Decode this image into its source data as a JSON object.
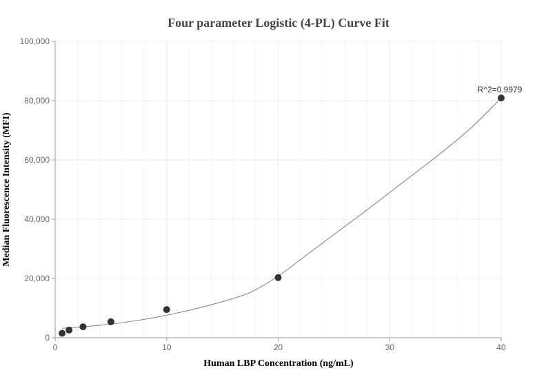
{
  "chart_data": {
    "type": "scatter",
    "title": "Four parameter Logistic (4-PL) Curve Fit",
    "xlabel": "Human LBP Concentration (ng/mL)",
    "ylabel": "Median Fluorescence Intensity (MFI)",
    "xlim": [
      0,
      40
    ],
    "ylim": [
      0,
      100000
    ],
    "x_ticks": [
      0,
      10,
      20,
      30,
      40
    ],
    "y_ticks": [
      0,
      20000,
      40000,
      60000,
      80000,
      100000
    ],
    "x_tick_labels": [
      "0",
      "10",
      "20",
      "30",
      "40"
    ],
    "y_tick_labels": [
      "0",
      "20,000",
      "40,000",
      "60,000",
      "80,000",
      "100,000"
    ],
    "grid": true,
    "series": [
      {
        "points": [
          {
            "x": 0.625,
            "y": 1500
          },
          {
            "x": 1.25,
            "y": 2600
          },
          {
            "x": 2.5,
            "y": 3700
          },
          {
            "x": 5,
            "y": 5400
          },
          {
            "x": 10,
            "y": 9500
          },
          {
            "x": 20,
            "y": 20300
          },
          {
            "x": 40,
            "y": 80900
          }
        ]
      }
    ],
    "fit_curve": [
      {
        "x": 0.625,
        "y": 3200
      },
      {
        "x": 2.5,
        "y": 3700
      },
      {
        "x": 5,
        "y": 4600
      },
      {
        "x": 7.5,
        "y": 5900
      },
      {
        "x": 10,
        "y": 7600
      },
      {
        "x": 12.5,
        "y": 9700
      },
      {
        "x": 15,
        "y": 12200
      },
      {
        "x": 17.5,
        "y": 15300
      },
      {
        "x": 20,
        "y": 20800
      },
      {
        "x": 22.5,
        "y": 27800
      },
      {
        "x": 25,
        "y": 34800
      },
      {
        "x": 27.5,
        "y": 41800
      },
      {
        "x": 30,
        "y": 49000
      },
      {
        "x": 32.5,
        "y": 56200
      },
      {
        "x": 35,
        "y": 63500
      },
      {
        "x": 37.5,
        "y": 71500
      },
      {
        "x": 40,
        "y": 80900
      }
    ],
    "annotations": [
      {
        "text": "R^2=0.9979",
        "x": 40,
        "y": 80900
      }
    ],
    "colors": {
      "point": "#333333",
      "curve": "#888888",
      "grid": "#eeeeee",
      "axis": "#999999"
    }
  }
}
